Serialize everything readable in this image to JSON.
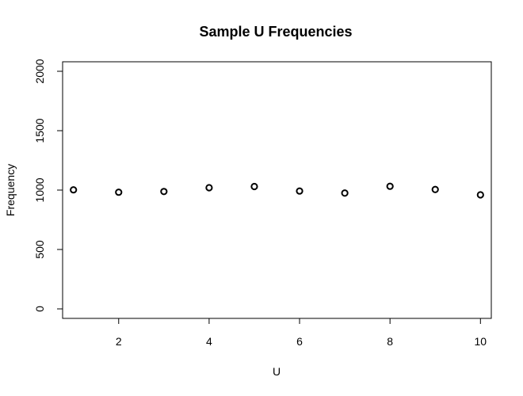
{
  "chart_data": {
    "type": "scatter",
    "title": "Sample U Frequencies",
    "xlabel": "U",
    "ylabel": "Frequency",
    "x": [
      1,
      2,
      3,
      4,
      5,
      6,
      7,
      8,
      9,
      10
    ],
    "y": [
      1002,
      982,
      988,
      1020,
      1030,
      992,
      975,
      1032,
      1005,
      960
    ],
    "xlim": [
      0.76,
      10.24
    ],
    "ylim": [
      -80,
      2080
    ],
    "xticks": [
      2,
      4,
      6,
      8,
      10
    ],
    "yticks": [
      0,
      500,
      1000,
      1500,
      2000
    ],
    "grid": false,
    "marker": "open-circle"
  }
}
